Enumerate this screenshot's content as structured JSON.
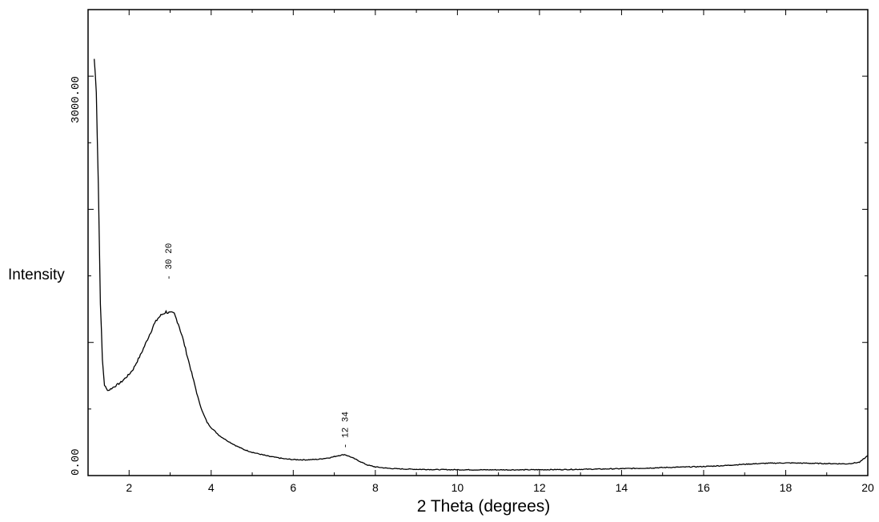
{
  "chart_data": {
    "type": "line",
    "title": "",
    "xlabel": "2 Theta (degrees)",
    "ylabel": "Intensity",
    "xlim": [
      1,
      20
    ],
    "ylim": [
      0,
      3500
    ],
    "x_ticks": [
      2,
      4,
      6,
      8,
      10,
      12,
      14,
      16,
      18,
      20
    ],
    "x_tick_labels": [
      "2",
      "4",
      "6",
      "8",
      "10",
      "12",
      "14",
      "16",
      "18",
      "20"
    ],
    "y_tick_labels": [
      {
        "value": 0,
        "label": "0.00"
      },
      {
        "value": 3000,
        "label": "3000.00"
      }
    ],
    "grid": false,
    "legend": "none",
    "annotations": [
      {
        "x": 2.95,
        "y": 1420,
        "text": "30 20"
      },
      {
        "x": 7.25,
        "y": 155,
        "text": "12 34"
      }
    ],
    "series": [
      {
        "x": [
          1.15,
          1.2,
          1.25,
          1.3,
          1.35,
          1.4,
          1.45,
          1.5,
          1.6,
          1.7,
          1.8,
          1.9,
          2.0,
          2.1,
          2.2,
          2.3,
          2.4,
          2.5,
          2.6,
          2.7,
          2.8,
          2.9,
          3.0,
          3.1,
          3.2,
          3.3,
          3.4,
          3.5,
          3.6,
          3.7,
          3.8,
          3.9,
          4.0,
          4.2,
          4.4,
          4.6,
          4.8,
          5.0,
          5.2,
          5.4,
          5.6,
          5.8,
          6.0,
          6.3,
          6.6,
          6.9,
          7.1,
          7.25,
          7.4,
          7.6,
          7.8,
          8.0,
          8.3,
          8.6,
          9.0,
          9.5,
          10.0,
          10.5,
          11.0,
          11.5,
          12.0,
          12.5,
          13.0,
          13.5,
          14.0,
          14.5,
          15.0,
          15.5,
          16.0,
          16.5,
          17.0,
          17.5,
          18.0,
          18.5,
          19.0,
          19.5,
          19.8,
          20.0
        ],
        "values": [
          3130,
          2900,
          2200,
          1300,
          870,
          680,
          650,
          640,
          660,
          680,
          700,
          730,
          760,
          800,
          860,
          920,
          990,
          1060,
          1130,
          1180,
          1210,
          1230,
          1220,
          1215,
          1140,
          1040,
          920,
          800,
          680,
          560,
          470,
          400,
          360,
          300,
          260,
          225,
          195,
          175,
          160,
          145,
          135,
          125,
          120,
          118,
          122,
          135,
          150,
          158,
          140,
          110,
          80,
          65,
          55,
          50,
          47,
          45,
          44,
          43,
          43,
          43,
          44,
          45,
          47,
          49,
          52,
          55,
          60,
          64,
          68,
          75,
          85,
          92,
          95,
          93,
          90,
          88,
          100,
          150
        ]
      }
    ]
  }
}
